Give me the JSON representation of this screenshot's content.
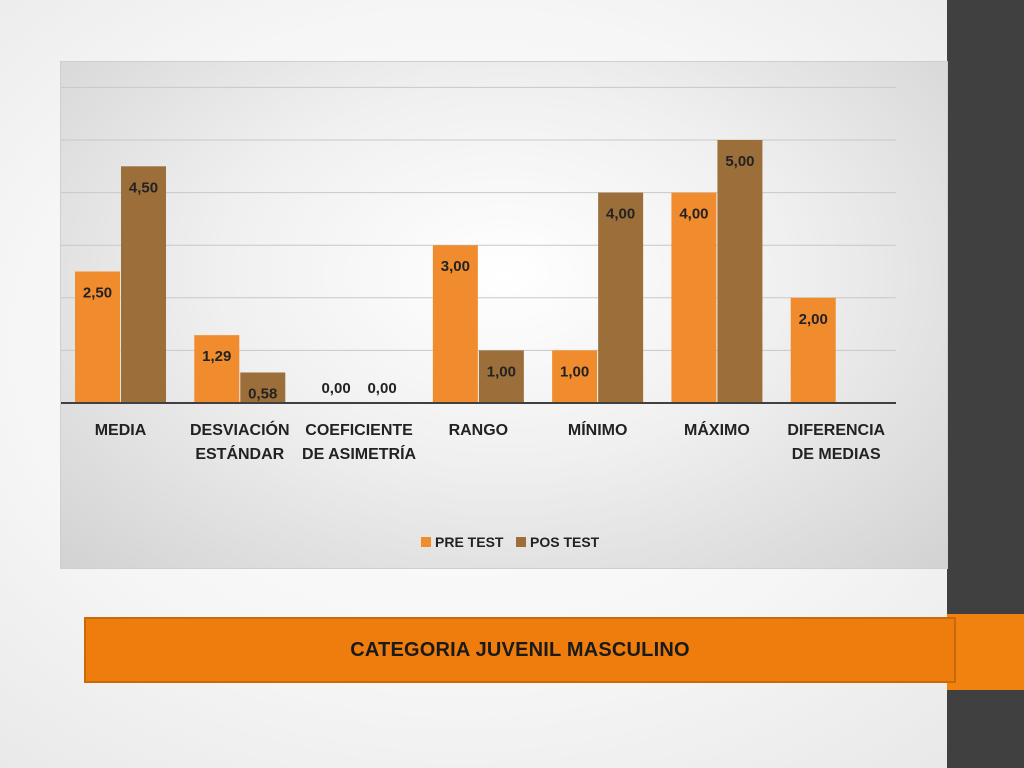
{
  "chart_data": {
    "type": "bar",
    "categories": [
      [
        "MEDIA"
      ],
      [
        "DESVIACIÓN",
        "ESTÁNDAR"
      ],
      [
        "COEFICIENTE",
        "DE ASIMETRÍA"
      ],
      [
        "RANGO"
      ],
      [
        "MÍNIMO"
      ],
      [
        "MÁXIMO"
      ],
      [
        "DIFERENCIA",
        "DE MEDIAS"
      ]
    ],
    "series": [
      {
        "name": "PRE TEST",
        "color": "#f08c2e",
        "values": [
          2.5,
          1.29,
          0.0,
          3.0,
          1.0,
          4.0,
          2.0
        ],
        "labels": [
          "2,50",
          "1,29",
          "0,00",
          "3,00",
          "1,00",
          "4,00",
          "2,00"
        ]
      },
      {
        "name": "POS TEST",
        "color": "#9c6f3a",
        "values": [
          4.5,
          0.58,
          0.0,
          1.0,
          4.0,
          5.0,
          null
        ],
        "labels": [
          "4,50",
          "0,58",
          "0,00",
          "1,00",
          "4,00",
          "5,00",
          null
        ]
      }
    ],
    "ylim": [
      0,
      6
    ],
    "grid": true,
    "legend_position": "bottom"
  },
  "caption": {
    "text": "CATEGORIA JUVENIL MASCULINO"
  },
  "colors": {
    "accent": "#ef7d0e",
    "side_panel": "#404040"
  }
}
